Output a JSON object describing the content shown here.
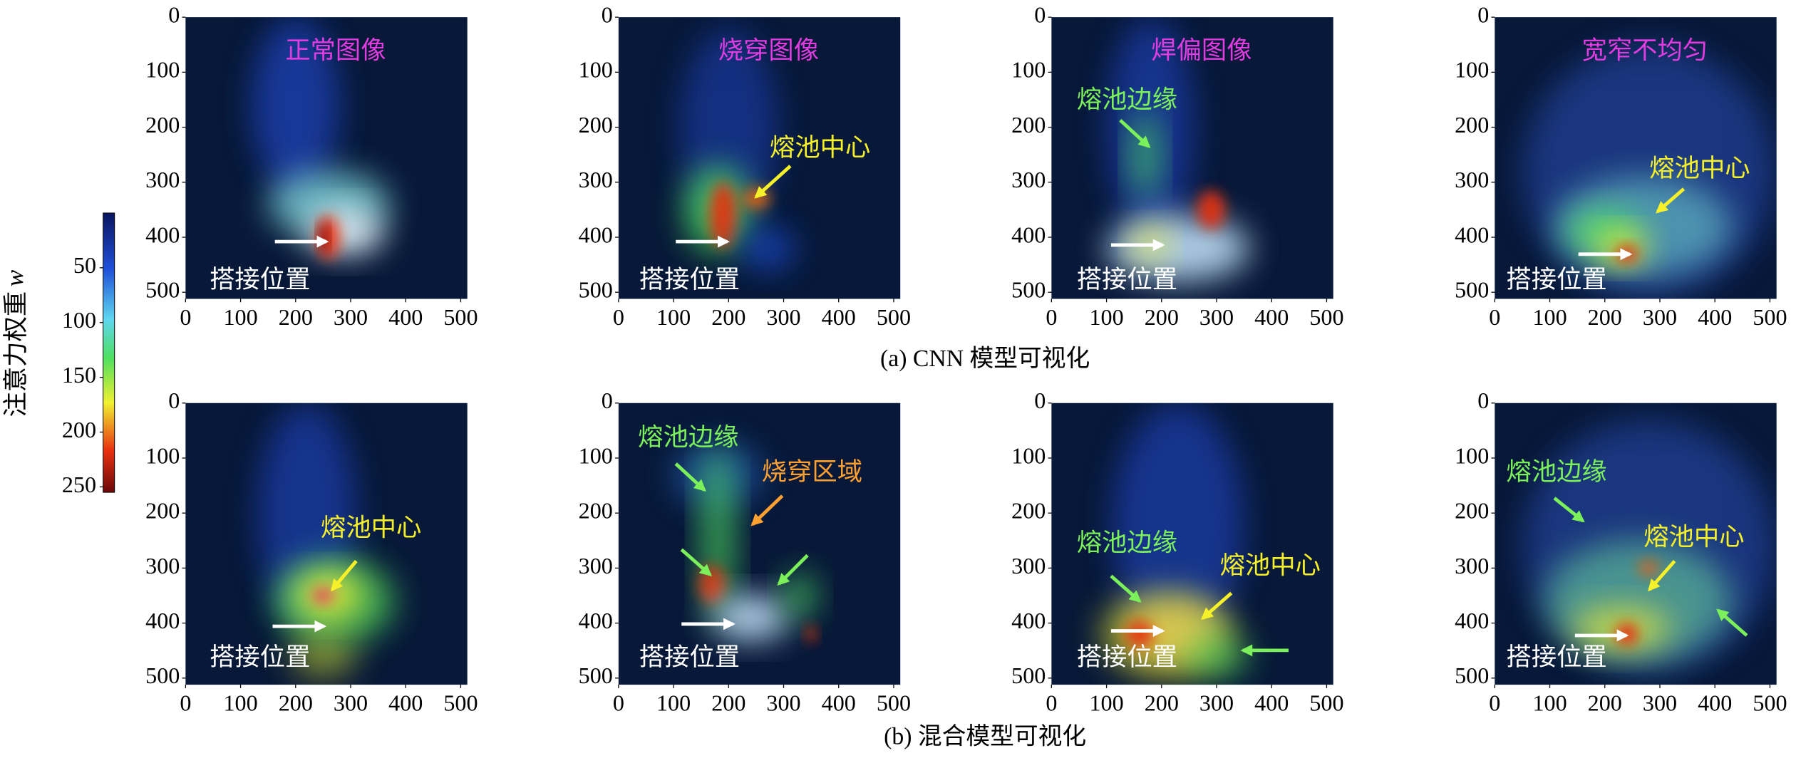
{
  "axes": {
    "xlim": [
      0,
      512
    ],
    "ylim": [
      0,
      512
    ],
    "xticks": [
      0,
      100,
      200,
      300,
      400,
      500
    ],
    "yticks": [
      0,
      100,
      200,
      300,
      400,
      500
    ]
  },
  "colorbar": {
    "label": "注意力权重",
    "variable": "w",
    "lim": [
      0,
      255
    ],
    "ticks": [
      50,
      100,
      150,
      200,
      250
    ]
  },
  "rows": [
    {
      "caption": "(a) CNN 模型可视化",
      "panels": [
        {
          "title": "正常图像",
          "title_color": "#e03ce0",
          "annotations": [
            {
              "text": "搭接位置",
              "color": "#ffffff"
            }
          ]
        },
        {
          "title": "烧穿图像",
          "title_color": "#e03ce0",
          "annotations": [
            {
              "text": "熔池中心",
              "color": "#f5f02a"
            },
            {
              "text": "搭接位置",
              "color": "#ffffff"
            }
          ]
        },
        {
          "title": "焊偏图像",
          "title_color": "#e03ce0",
          "annotations": [
            {
              "text": "熔池边缘",
              "color": "#7cf05a"
            },
            {
              "text": "搭接位置",
              "color": "#ffffff"
            }
          ]
        },
        {
          "title": "宽窄不均匀",
          "title_color": "#e03ce0",
          "annotations": [
            {
              "text": "熔池中心",
              "color": "#f5f02a"
            },
            {
              "text": "搭接位置",
              "color": "#ffffff"
            }
          ]
        }
      ]
    },
    {
      "caption": "(b) 混合模型可视化",
      "panels": [
        {
          "annotations": [
            {
              "text": "熔池中心",
              "color": "#f5f02a"
            },
            {
              "text": "搭接位置",
              "color": "#ffffff"
            }
          ]
        },
        {
          "annotations": [
            {
              "text": "熔池边缘",
              "color": "#7cf05a"
            },
            {
              "text": "烧穿区域",
              "color": "#ffa030"
            },
            {
              "text": "搭接位置",
              "color": "#ffffff"
            }
          ]
        },
        {
          "annotations": [
            {
              "text": "熔池边缘",
              "color": "#7cf05a"
            },
            {
              "text": "熔池中心",
              "color": "#f5f02a"
            },
            {
              "text": "搭接位置",
              "color": "#ffffff"
            }
          ]
        },
        {
          "annotations": [
            {
              "text": "熔池边缘",
              "color": "#7cf05a"
            },
            {
              "text": "熔池中心",
              "color": "#f5f02a"
            },
            {
              "text": "搭接位置",
              "color": "#ffffff"
            }
          ]
        }
      ]
    }
  ]
}
